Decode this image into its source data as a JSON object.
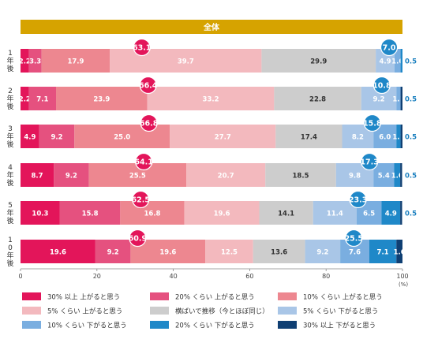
{
  "chart_data": {
    "type": "bar",
    "orientation": "horizontal",
    "stacked": true,
    "title": "全体",
    "x_unit": "(%)",
    "xlim": [
      0,
      100
    ],
    "x_ticks": [
      0,
      20,
      40,
      60,
      80,
      100
    ],
    "grid": false,
    "legend_position": "bottom",
    "categories": [
      "1年後",
      "2年後",
      "3年後",
      "4年後",
      "5年後",
      "10年後"
    ],
    "series": [
      {
        "name": "30% 以上 上がると思う",
        "color": "#e3155a",
        "values": [
          2.2,
          2.2,
          4.9,
          8.7,
          10.3,
          19.6
        ]
      },
      {
        "name": "20% くらい 上がると思う",
        "color": "#e5517f",
        "values": [
          3.3,
          7.1,
          9.2,
          9.2,
          15.8,
          9.2
        ]
      },
      {
        "name": "10% くらい 上がると思う",
        "color": "#ed8790",
        "values": [
          17.9,
          23.9,
          25.0,
          25.5,
          16.8,
          19.6
        ]
      },
      {
        "name": "5% くらい 上がると思う",
        "color": "#f3b9be",
        "values": [
          39.7,
          33.2,
          27.7,
          20.7,
          19.6,
          12.5
        ]
      },
      {
        "name": "横ばいで推移（今とほぼ同じ）",
        "color": "#cdcdcd",
        "values": [
          29.9,
          22.8,
          17.4,
          18.5,
          14.1,
          13.6
        ]
      },
      {
        "name": "5% くらい 下がると思う",
        "color": "#a9c6e7",
        "values": [
          4.9,
          9.2,
          8.2,
          9.8,
          11.4,
          9.2
        ]
      },
      {
        "name": "10% くらい 下がると思う",
        "color": "#7aaee0",
        "values": [
          1.6,
          1.1,
          6.0,
          5.4,
          6.5,
          7.6
        ]
      },
      {
        "name": "20% くらい 下がると思う",
        "color": "#1f88c8",
        "values": [
          0.5,
          0,
          1.1,
          1.6,
          4.9,
          7.1
        ]
      },
      {
        "name": "30% 以上 下がると思う",
        "color": "#0f3f73",
        "values": [
          0,
          0.5,
          0.5,
          0.5,
          0.5,
          1.6
        ]
      }
    ],
    "rise_totals": [
      63.1,
      66.4,
      66.8,
      64.1,
      62.5,
      60.9
    ],
    "fall_totals": [
      7.0,
      10.8,
      15.8,
      17.3,
      23.3,
      25.5
    ],
    "outside_labels": [
      "0.5",
      "0.5",
      "0.5",
      "0.5",
      "0.5",
      ""
    ],
    "hidden_labels": [
      [
        false,
        false,
        false,
        false,
        false,
        false,
        false,
        true,
        true
      ],
      [
        false,
        false,
        false,
        false,
        false,
        false,
        false,
        true,
        true
      ],
      [
        false,
        false,
        false,
        false,
        false,
        false,
        false,
        false,
        true
      ],
      [
        false,
        false,
        false,
        false,
        false,
        false,
        false,
        false,
        true
      ],
      [
        false,
        false,
        false,
        false,
        false,
        false,
        false,
        false,
        true
      ],
      [
        false,
        false,
        false,
        false,
        false,
        false,
        false,
        false,
        false
      ]
    ]
  },
  "colors": {
    "header": "#d6a300",
    "rise_bubble": "#e3155a",
    "fall_bubble": "#1f88c8",
    "outside_label": "#1a7fbf"
  }
}
